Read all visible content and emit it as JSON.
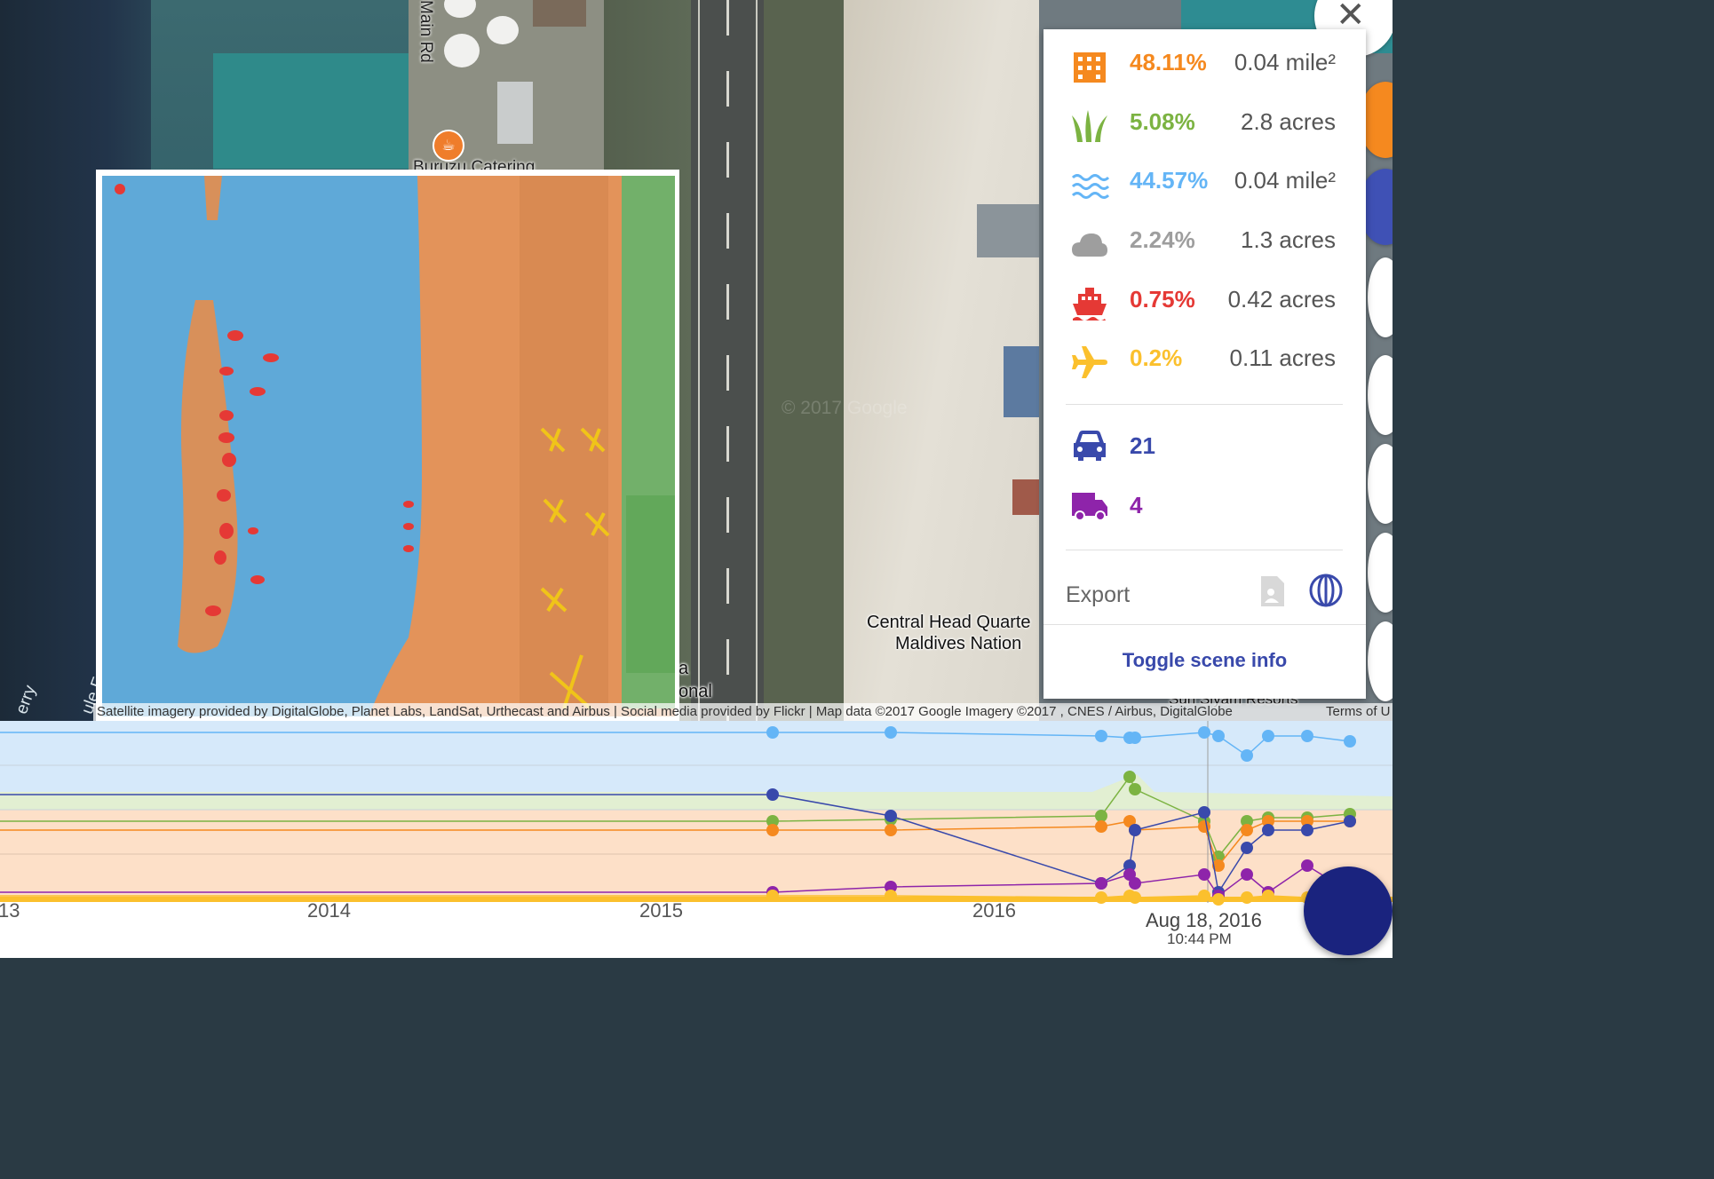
{
  "map": {
    "road_label": "Main Rd",
    "poi_label": "Buruzu Catering",
    "poi_icon": "cafe-icon",
    "hq_label_line1": "Central Head Quarte",
    "hq_label_line2": "Maldives Nation",
    "airport_label_line1": "a",
    "airport_label_line2": "onal",
    "ferry_label": "erry",
    "ferry_label2": "ule Fe",
    "watermark": "© 2017 Google",
    "resort_label": "Sun Siyam Resorts",
    "attribution": "Satellite imagery provided by DigitalGlobe, Planet Labs, LandSat, Urthecast and Airbus | Social media provided by Flickr | Map data ©2017 Google Imagery ©2017 , CNES / Airbus, DigitalGlobe",
    "terms": "Terms of U",
    "close_icon": "close-icon"
  },
  "stats": {
    "rows": [
      {
        "icon": "building-icon",
        "color": "#f5891f",
        "percent": "48.11%",
        "area": "0.04 mile²"
      },
      {
        "icon": "vegetation-icon",
        "color": "#7cb342",
        "percent": "5.08%",
        "area": "2.8 acres"
      },
      {
        "icon": "water-icon",
        "color": "#64b5f6",
        "percent": "44.57%",
        "area": "0.04 mile²"
      },
      {
        "icon": "cloud-icon",
        "color": "#9e9e9e",
        "percent": "2.24%",
        "area": "1.3 acres"
      },
      {
        "icon": "ship-icon",
        "color": "#e53935",
        "percent": "0.75%",
        "area": "0.42 acres"
      },
      {
        "icon": "airplane-icon",
        "color": "#fbc02d",
        "percent": "0.2%",
        "area": "0.11 acres"
      }
    ],
    "cars": {
      "icon": "car-icon",
      "color": "#3949ab",
      "count": "21"
    },
    "trucks": {
      "icon": "truck-icon",
      "color": "#8e24aa",
      "count": "4"
    },
    "export_label": "Export",
    "export_doc_icon": "document-export-icon",
    "export_globe_icon": "globe-export-icon",
    "toggle_label": "Toggle scene info"
  },
  "timeline": {
    "ticks": [
      "13",
      "2014",
      "2015",
      "2016"
    ],
    "cursor_date": "Aug 18, 2016",
    "cursor_time": "10:44 PM"
  },
  "chart_data": {
    "type": "line",
    "title": "",
    "x": [
      "2015-04",
      "2015-08",
      "2016-04-10",
      "2016-04-20",
      "2016-05-01",
      "2016-08-10",
      "2016-08-18",
      "2016-09-15",
      "2016-10-01",
      "2016-11-10",
      "2016-12-10"
    ],
    "series": [
      {
        "color": "#64b5f6",
        "values": [
          95,
          95,
          93,
          92,
          92,
          95,
          93,
          82,
          93,
          93,
          90
        ]
      },
      {
        "color": "#7cb342",
        "values": [
          45,
          46,
          48,
          70,
          63,
          45,
          25,
          45,
          47,
          47,
          49
        ]
      },
      {
        "color": "#f5891f",
        "values": [
          40,
          40,
          42,
          45,
          40,
          42,
          20,
          40,
          45,
          45,
          45
        ]
      },
      {
        "color": "#3949ab",
        "values": [
          60,
          48,
          10,
          20,
          40,
          50,
          5,
          30,
          40,
          40,
          45
        ]
      },
      {
        "color": "#8e24aa",
        "values": [
          5,
          8,
          10,
          15,
          10,
          15,
          3,
          15,
          5,
          20,
          5
        ]
      },
      {
        "color": "#fbc02d",
        "values": [
          3,
          3,
          2,
          3,
          2,
          3,
          1,
          2,
          3,
          2,
          2
        ]
      }
    ]
  }
}
